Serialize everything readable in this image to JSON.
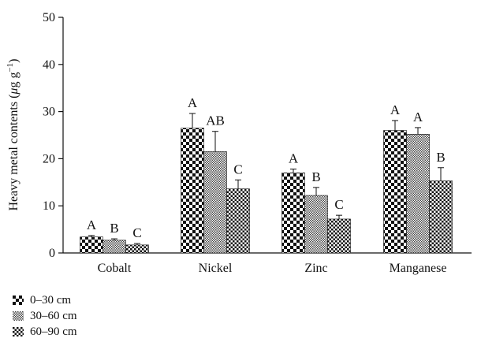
{
  "chart_data": {
    "type": "bar",
    "categories": [
      "Cobalt",
      "Nickel",
      "Zinc",
      "Manganese"
    ],
    "ylabel": "Heavy metal contents (μg g⁻¹)",
    "ylabel_parts": {
      "pre": "Heavy metal contents (",
      "mu": "μ",
      "g": "g g",
      "sup": "−1",
      "post": ")"
    },
    "ylim": [
      0,
      50
    ],
    "yticks": [
      0,
      10,
      20,
      30,
      40,
      50
    ],
    "series": [
      {
        "name": "0–30 cm",
        "pattern": "checker-large",
        "values": [
          3.4,
          26.5,
          17.0,
          26.0
        ],
        "errors": [
          0.3,
          3.1,
          0.8,
          2.1
        ],
        "letters": [
          "A",
          "A",
          "A",
          "A"
        ]
      },
      {
        "name": "30–60 cm",
        "pattern": "checker-fine",
        "values": [
          2.7,
          21.5,
          12.2,
          25.2
        ],
        "errors": [
          0.3,
          4.3,
          1.7,
          1.4
        ],
        "letters": [
          "B",
          "AB",
          "B",
          "A"
        ]
      },
      {
        "name": "60–90 cm",
        "pattern": "checker-medium",
        "values": [
          1.7,
          13.6,
          7.2,
          15.3
        ],
        "errors": [
          0.3,
          1.9,
          0.8,
          2.8
        ],
        "letters": [
          "C",
          "C",
          "C",
          "B"
        ]
      }
    ],
    "legend_position": "bottom-left",
    "grid": false
  }
}
